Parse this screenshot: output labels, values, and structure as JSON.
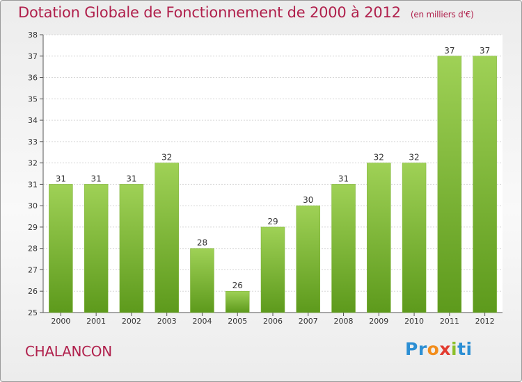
{
  "header": {
    "title": "Dotation Globale de Fonctionnement de 2000 à 2012",
    "subtitle": "(en milliers d'€)"
  },
  "footer": {
    "commune": "CHALANCON",
    "logo": {
      "p1": "Pr",
      "p2": "o",
      "p3": "x",
      "p4": "i",
      "p5": "ti"
    }
  },
  "colors": {
    "bar_top": "#9fd156",
    "bar_bottom": "#5d9a1c",
    "title": "#b0204c"
  },
  "chart_data": {
    "type": "bar",
    "title": "Dotation Globale de Fonctionnement de 2000 à 2012",
    "subtitle": "(en milliers d'€)",
    "xlabel": "",
    "ylabel": "",
    "categories": [
      "2000",
      "2001",
      "2002",
      "2003",
      "2004",
      "2005",
      "2006",
      "2007",
      "2008",
      "2009",
      "2010",
      "2011",
      "2012"
    ],
    "values": [
      31,
      31,
      31,
      32,
      28,
      26,
      29,
      30,
      31,
      32,
      32,
      37,
      37
    ],
    "ylim": [
      25,
      38
    ],
    "yticks": [
      25,
      26,
      27,
      28,
      29,
      30,
      31,
      32,
      33,
      34,
      35,
      36,
      37,
      38
    ],
    "grid": true,
    "data_labels": true
  }
}
